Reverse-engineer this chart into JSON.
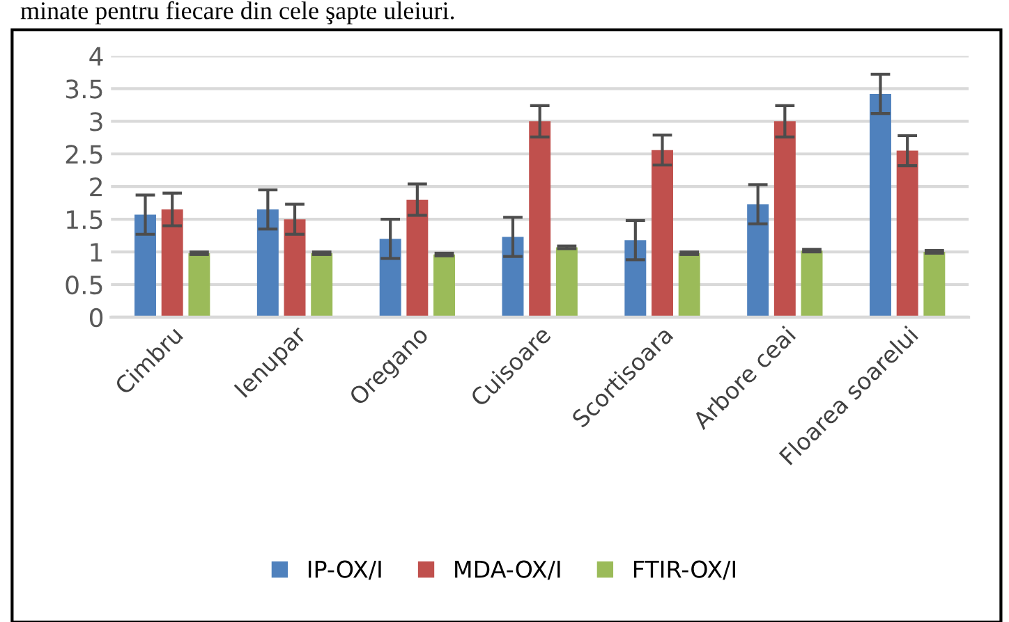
{
  "chart_data": {
    "type": "bar",
    "categories": [
      "Cimbru",
      "Ienupar",
      "Oregano",
      "Cuisoare",
      "Scortisoara",
      "Arbore ceai",
      "Floarea soarelui"
    ],
    "series": [
      {
        "name": "IP-OX/I",
        "color": "#4f81bd",
        "values": [
          1.57,
          1.65,
          1.2,
          1.23,
          1.18,
          1.73,
          3.42
        ],
        "errors": [
          0.3,
          0.3,
          0.3,
          0.3,
          0.3,
          0.3,
          0.3
        ]
      },
      {
        "name": "MDA-OX/I",
        "color": "#c0504d",
        "values": [
          1.65,
          1.5,
          1.8,
          3.0,
          2.56,
          3.0,
          2.55
        ],
        "errors": [
          0.25,
          0.23,
          0.24,
          0.24,
          0.23,
          0.24,
          0.23
        ]
      },
      {
        "name": "FTIR-OX/I",
        "color": "#9bbb59",
        "values": [
          0.98,
          0.98,
          0.96,
          1.07,
          0.98,
          1.02,
          1.0
        ],
        "errors": [
          0.02,
          0.02,
          0.02,
          0.02,
          0.02,
          0.02,
          0.02
        ]
      }
    ],
    "ylim": [
      0,
      4
    ],
    "yticks": [
      0,
      0.5,
      1,
      1.5,
      2,
      2.5,
      3,
      3.5,
      4
    ],
    "grid": "y",
    "legend": "bottom",
    "annotations": [
      "minate pentru fiecare din cele şapte uleiuri."
    ]
  }
}
